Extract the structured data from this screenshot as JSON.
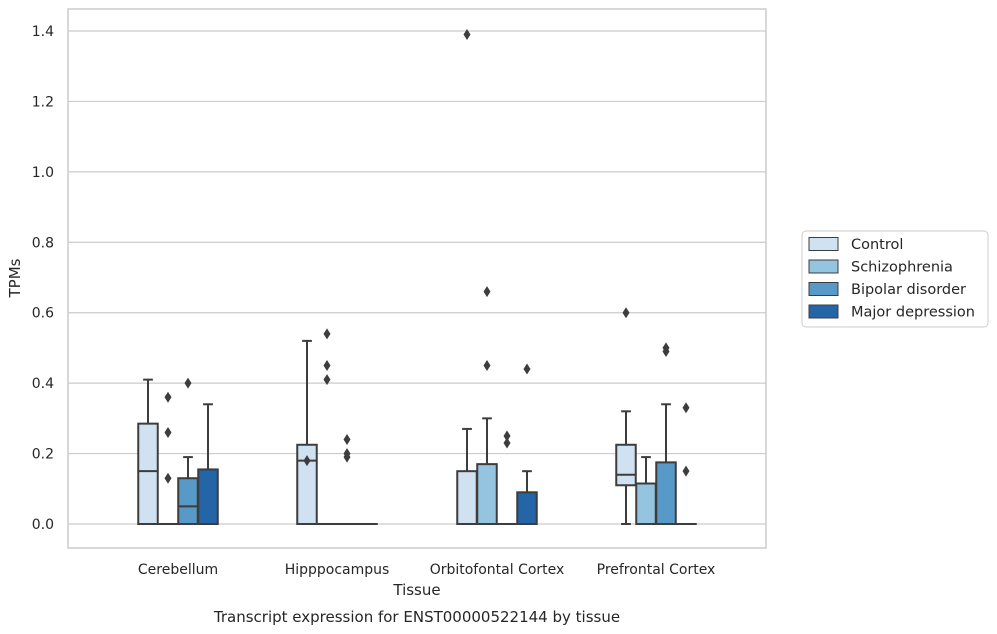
{
  "caption": "Transcript expression for ENST00000522144 by tissue",
  "chart_data": {
    "type": "box",
    "xlabel": "Tissue",
    "ylabel": "TPMs",
    "ylim": [
      -0.07,
      1.46
    ],
    "yticks": [
      "0.0",
      "0.2",
      "0.4",
      "0.6",
      "0.8",
      "1.0",
      "1.2",
      "1.4"
    ],
    "grid": "horizontal",
    "legend_position": "right",
    "categories": [
      "Cerebellum",
      "Hipppocampus",
      "Orbitofontal Cortex",
      "Prefrontal Cortex"
    ],
    "series": [
      {
        "name": "Control",
        "color": "#d0e1f2",
        "boxes": [
          {
            "q1": 0.0,
            "median": 0.15,
            "q3": 0.285,
            "whisker_low": 0.0,
            "whisker_high": 0.41,
            "outliers": []
          },
          {
            "q1": 0.0,
            "median": 0.18,
            "q3": 0.225,
            "whisker_low": 0.0,
            "whisker_high": 0.52,
            "outliers": [
              0.18
            ]
          },
          {
            "q1": 0.0,
            "median": 0.0,
            "q3": 0.15,
            "whisker_low": 0.0,
            "whisker_high": 0.27,
            "outliers": [
              1.39
            ]
          },
          {
            "q1": 0.11,
            "median": 0.14,
            "q3": 0.225,
            "whisker_low": 0.0,
            "whisker_high": 0.32,
            "outliers": [
              0.6
            ]
          }
        ]
      },
      {
        "name": "Schizophrenia",
        "color": "#94c4df",
        "boxes": [
          {
            "q1": 0.0,
            "median": 0.0,
            "q3": 0.0,
            "whisker_low": 0.0,
            "whisker_high": 0.0,
            "outliers": [
              0.13,
              0.26,
              0.36
            ]
          },
          {
            "q1": 0.0,
            "median": 0.0,
            "q3": 0.0,
            "whisker_low": 0.0,
            "whisker_high": 0.0,
            "outliers": [
              0.41,
              0.45,
              0.54
            ]
          },
          {
            "q1": 0.0,
            "median": 0.0,
            "q3": 0.17,
            "whisker_low": 0.0,
            "whisker_high": 0.3,
            "outliers": [
              0.45,
              0.66
            ]
          },
          {
            "q1": 0.0,
            "median": 0.0,
            "q3": 0.115,
            "whisker_low": 0.0,
            "whisker_high": 0.19,
            "outliers": []
          }
        ]
      },
      {
        "name": "Bipolar disorder",
        "color": "#5799c7",
        "boxes": [
          {
            "q1": 0.0,
            "median": 0.05,
            "q3": 0.13,
            "whisker_low": 0.0,
            "whisker_high": 0.19,
            "outliers": [
              0.4
            ]
          },
          {
            "q1": 0.0,
            "median": 0.0,
            "q3": 0.0,
            "whisker_low": 0.0,
            "whisker_high": 0.0,
            "outliers": [
              0.19,
              0.2,
              0.24
            ]
          },
          {
            "q1": 0.0,
            "median": 0.0,
            "q3": 0.0,
            "whisker_low": 0.0,
            "whisker_high": 0.0,
            "outliers": [
              0.23,
              0.25
            ]
          },
          {
            "q1": 0.0,
            "median": 0.0,
            "q3": 0.175,
            "whisker_low": 0.0,
            "whisker_high": 0.34,
            "outliers": [
              0.49,
              0.5
            ]
          }
        ]
      },
      {
        "name": "Major depression",
        "color": "#2465a8",
        "boxes": [
          {
            "q1": 0.0,
            "median": 0.0,
            "q3": 0.155,
            "whisker_low": 0.0,
            "whisker_high": 0.34,
            "outliers": []
          },
          {
            "q1": 0.0,
            "median": 0.0,
            "q3": 0.0,
            "whisker_low": 0.0,
            "whisker_high": 0.0,
            "outliers": []
          },
          {
            "q1": 0.0,
            "median": 0.0,
            "q3": 0.09,
            "whisker_low": 0.0,
            "whisker_high": 0.15,
            "outliers": [
              0.44
            ]
          },
          {
            "q1": 0.0,
            "median": 0.0,
            "q3": 0.0,
            "whisker_low": 0.0,
            "whisker_high": 0.0,
            "outliers": [
              0.15,
              0.33
            ]
          }
        ]
      }
    ]
  }
}
